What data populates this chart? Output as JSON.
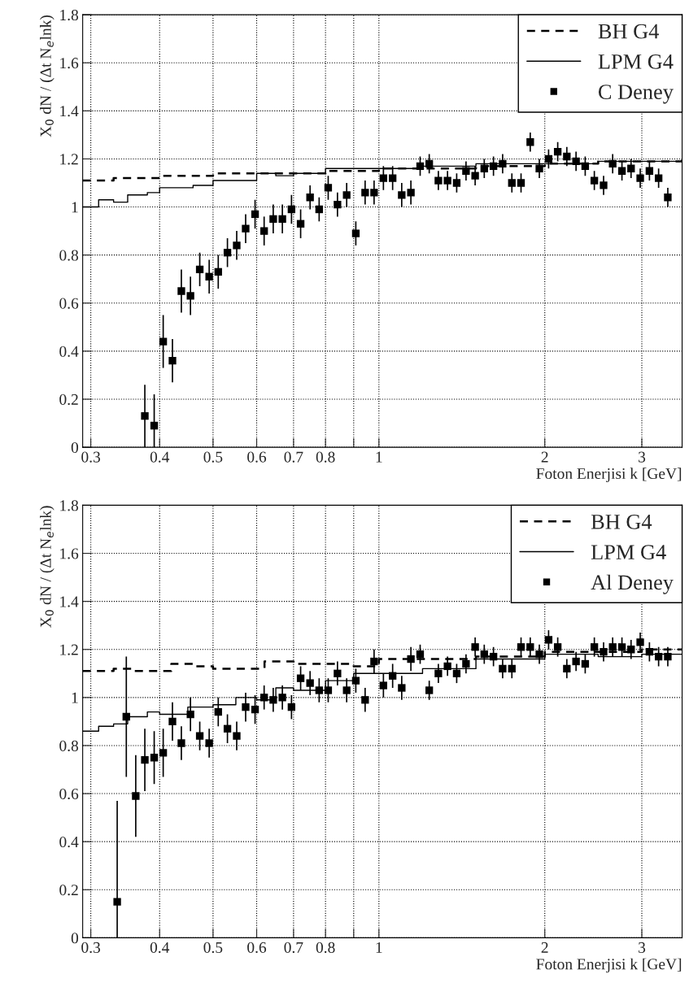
{
  "chart_data": [
    {
      "type": "scatter",
      "xlabel": "Foton Enerjisi k [GeV]",
      "ylabel": "X$_{0}$ dN / (Δt N$_{e}$lnk)",
      "log": "x",
      "grid": true,
      "legend": "top right",
      "xlim": [
        0.29,
        3.55
      ],
      "xticks": [
        0.3,
        0.4,
        0.5,
        0.6,
        0.7,
        0.8,
        {
          "value": 0.9,
          "label": null
        },
        1,
        2,
        3
      ],
      "ylim": [
        0,
        1.8
      ],
      "yticks": [
        0,
        0.2,
        0.4,
        0.6,
        0.8,
        1,
        1.2,
        1.4,
        1.6,
        1.8
      ],
      "series": [
        {
          "name": "BH G4",
          "type": "step",
          "line_style": "dashed",
          "color": "#000000",
          "x": [
            0.29,
            0.31,
            0.33,
            0.36,
            0.4,
            0.45,
            0.5,
            0.6,
            0.7,
            0.8,
            1.0,
            1.5,
            2.0,
            2.5,
            3.0,
            3.55
          ],
          "values": [
            1.11,
            1.11,
            1.12,
            1.12,
            1.13,
            1.13,
            1.14,
            1.14,
            1.14,
            1.15,
            1.16,
            1.17,
            1.18,
            1.19,
            1.19,
            1.2
          ]
        },
        {
          "name": "LPM G4",
          "type": "step",
          "line_style": "solid",
          "color": "#000000",
          "x": [
            0.29,
            0.31,
            0.33,
            0.35,
            0.38,
            0.4,
            0.43,
            0.46,
            0.5,
            0.55,
            0.6,
            0.65,
            0.7,
            0.8,
            0.9,
            1.0,
            1.2,
            1.5,
            2.0,
            2.5,
            3.0,
            3.55
          ],
          "values": [
            1.0,
            1.03,
            1.02,
            1.05,
            1.06,
            1.08,
            1.08,
            1.09,
            1.11,
            1.11,
            1.14,
            1.13,
            1.14,
            1.16,
            1.16,
            1.16,
            1.17,
            1.18,
            1.18,
            1.19,
            1.19,
            1.2
          ]
        },
        {
          "name": "C Deney",
          "marker": "square",
          "color": "#000000",
          "x": [
            0.376,
            0.391,
            0.406,
            0.422,
            0.438,
            0.455,
            0.473,
            0.492,
            0.511,
            0.531,
            0.552,
            0.573,
            0.596,
            0.619,
            0.643,
            0.668,
            0.694,
            0.721,
            0.75,
            0.779,
            0.809,
            0.841,
            0.874,
            0.908,
            0.944,
            0.98,
            1.019,
            1.059,
            1.1,
            1.143,
            1.188,
            1.234,
            1.282,
            1.332,
            1.384,
            1.439,
            1.495,
            1.553,
            1.614,
            1.677,
            1.743,
            1.811,
            1.882,
            1.955,
            2.032,
            2.111,
            2.193,
            2.279,
            2.368,
            2.46,
            2.557,
            2.656,
            2.761,
            2.868,
            2.98,
            3.097,
            3.218,
            3.344
          ],
          "values": [
            0.13,
            0.09,
            0.44,
            0.36,
            0.65,
            0.63,
            0.74,
            0.71,
            0.73,
            0.81,
            0.84,
            0.91,
            0.97,
            0.9,
            0.95,
            0.95,
            0.99,
            0.93,
            1.04,
            0.99,
            1.08,
            1.01,
            1.05,
            0.89,
            1.06,
            1.06,
            1.12,
            1.12,
            1.05,
            1.06,
            1.17,
            1.18,
            1.11,
            1.11,
            1.1,
            1.15,
            1.13,
            1.16,
            1.17,
            1.18,
            1.1,
            1.1,
            1.27,
            1.16,
            1.2,
            1.23,
            1.21,
            1.19,
            1.17,
            1.11,
            1.09,
            1.18,
            1.15,
            1.16,
            1.12,
            1.15,
            1.12,
            1.04
          ],
          "errors": [
            0.13,
            [
              0,
              0.22
            ],
            0.11,
            0.09,
            0.09,
            0.08,
            0.07,
            0.07,
            0.07,
            0.06,
            0.06,
            0.06,
            0.06,
            0.06,
            0.06,
            0.06,
            0.06,
            0.06,
            0.05,
            0.05,
            0.05,
            0.05,
            0.05,
            0.05,
            0.05,
            0.05,
            0.05,
            0.05,
            0.05,
            0.05,
            0.04,
            0.04,
            0.04,
            0.04,
            0.04,
            0.04,
            0.04,
            0.04,
            0.04,
            0.04,
            0.04,
            0.04,
            0.04,
            0.04,
            0.04,
            0.04,
            0.04,
            0.04,
            0.04,
            0.04,
            0.04,
            0.04,
            0.04,
            0.04,
            0.04,
            0.04,
            0.04,
            0.04
          ]
        }
      ]
    },
    {
      "type": "scatter",
      "xlabel": "Foton Enerjisi k [GeV]",
      "ylabel": "X$_{0}$ dN / (Δt N$_{e}$lnk)",
      "log": "x",
      "grid": true,
      "legend": "top right",
      "xlim": [
        0.29,
        3.55
      ],
      "xticks": [
        0.3,
        0.4,
        0.5,
        0.6,
        0.7,
        0.8,
        {
          "value": 0.9,
          "label": null
        },
        1,
        2,
        3
      ],
      "ylim": [
        0,
        1.8
      ],
      "yticks": [
        0,
        0.2,
        0.4,
        0.6,
        0.8,
        1,
        1.2,
        1.4,
        1.6,
        1.8
      ],
      "series": [
        {
          "name": "BH G4",
          "type": "step",
          "line_style": "dashed",
          "color": "#000000",
          "x": [
            0.29,
            0.33,
            0.36,
            0.4,
            0.42,
            0.46,
            0.5,
            0.55,
            0.6,
            0.62,
            0.7,
            0.8,
            0.9,
            1.0,
            1.5,
            2.0,
            2.5,
            3.0,
            3.55
          ],
          "values": [
            1.11,
            1.12,
            1.11,
            1.11,
            1.14,
            1.13,
            1.12,
            1.12,
            1.12,
            1.15,
            1.14,
            1.14,
            1.13,
            1.16,
            1.17,
            1.19,
            1.19,
            1.2,
            1.2
          ]
        },
        {
          "name": "LPM G4",
          "type": "step",
          "line_style": "solid",
          "color": "#000000",
          "x": [
            0.29,
            0.31,
            0.33,
            0.35,
            0.38,
            0.4,
            0.45,
            0.5,
            0.55,
            0.6,
            0.65,
            0.7,
            0.8,
            0.9,
            1.0,
            1.2,
            1.5,
            2.0,
            2.5,
            3.0,
            3.55
          ],
          "values": [
            0.86,
            0.88,
            0.89,
            0.92,
            0.94,
            0.93,
            0.96,
            0.97,
            1.0,
            0.99,
            1.04,
            1.03,
            1.07,
            1.1,
            1.1,
            1.12,
            1.16,
            1.18,
            1.17,
            1.18,
            1.18
          ]
        },
        {
          "name": "Al Deney",
          "marker": "square",
          "color": "#000000",
          "x": [
            0.335,
            0.348,
            0.362,
            0.376,
            0.391,
            0.406,
            0.422,
            0.438,
            0.455,
            0.473,
            0.492,
            0.511,
            0.531,
            0.552,
            0.573,
            0.596,
            0.619,
            0.643,
            0.668,
            0.694,
            0.721,
            0.75,
            0.779,
            0.809,
            0.841,
            0.874,
            0.908,
            0.944,
            0.98,
            1.019,
            1.059,
            1.1,
            1.143,
            1.188,
            1.234,
            1.282,
            1.332,
            1.384,
            1.439,
            1.495,
            1.553,
            1.614,
            1.677,
            1.743,
            1.811,
            1.882,
            1.955,
            2.032,
            2.111,
            2.193,
            2.279,
            2.368,
            2.46,
            2.557,
            2.656,
            2.761,
            2.868,
            2.98,
            3.097,
            3.218,
            3.344
          ],
          "values": [
            0.15,
            0.92,
            0.59,
            0.74,
            0.75,
            0.77,
            0.9,
            0.81,
            0.93,
            0.84,
            0.81,
            0.94,
            0.87,
            0.84,
            0.96,
            0.95,
            1.0,
            0.99,
            1.0,
            0.96,
            1.08,
            1.06,
            1.03,
            1.03,
            1.1,
            1.03,
            1.07,
            0.99,
            1.15,
            1.05,
            1.09,
            1.04,
            1.16,
            1.18,
            1.03,
            1.1,
            1.13,
            1.1,
            1.14,
            1.21,
            1.18,
            1.17,
            1.12,
            1.12,
            1.21,
            1.21,
            1.18,
            1.24,
            1.21,
            1.12,
            1.15,
            1.14,
            1.21,
            1.19,
            1.21,
            1.21,
            1.2,
            1.23,
            1.19,
            1.17,
            1.17
          ],
          "errors": [
            [
              0,
              0.57
            ],
            0.25,
            0.17,
            0.13,
            0.11,
            0.1,
            0.08,
            0.07,
            0.07,
            0.06,
            0.06,
            0.06,
            0.06,
            0.06,
            0.06,
            0.06,
            0.05,
            0.05,
            0.05,
            0.05,
            0.05,
            0.05,
            0.05,
            0.05,
            0.05,
            0.05,
            0.05,
            0.05,
            0.05,
            0.05,
            0.05,
            0.05,
            0.05,
            0.04,
            0.04,
            0.04,
            0.04,
            0.04,
            0.04,
            0.04,
            0.04,
            0.04,
            0.04,
            0.04,
            0.04,
            0.04,
            0.04,
            0.04,
            0.04,
            0.04,
            0.04,
            0.04,
            0.04,
            0.04,
            0.04,
            0.04,
            0.04,
            0.04,
            0.04,
            0.04,
            0.04
          ]
        }
      ]
    }
  ]
}
